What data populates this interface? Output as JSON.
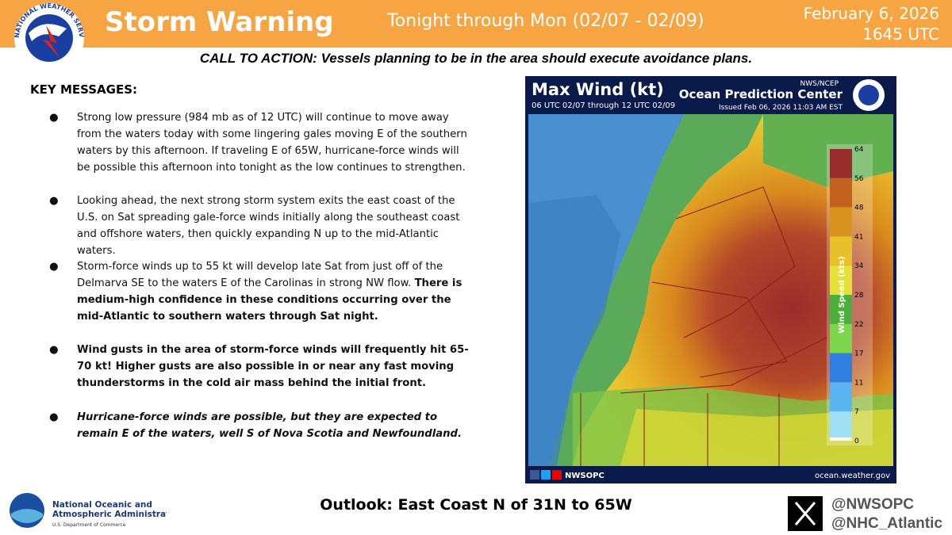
{
  "header": {
    "title": "Storm Warning",
    "period": "Tonight through Mon (02/07 - 02/09)",
    "date": "February 6, 2026",
    "time": "1645 UTC",
    "logo_text": "NATIONAL WEATHER SERVICE"
  },
  "call_to_action": "CALL TO ACTION: Vessels planning to be in the area should execute avoidance plans.",
  "key_messages": {
    "heading": "KEY MESSAGES:",
    "bullets": [
      [
        {
          "text": "Strong low pressure (984 mb as of 12 UTC) will continue to move away from the waters today with some lingering gales moving E of the southern waters by this afternoon. If traveling E of 65W, hurricane-force winds will be possible this afternoon into tonight as the low continues to strengthen.",
          "style": "normal"
        }
      ],
      [
        {
          "text": "Looking ahead, the next strong storm system exits the east coast of the U.S. on Sat spreading gale-force winds initially along the southeast coast and offshore waters, then quickly expanding N up to the mid-Atlantic waters.",
          "style": "normal"
        }
      ],
      [
        {
          "text": "Storm-force winds up to 55 kt will develop late Sat from just off of the Delmarva SE to the waters E of the Carolinas in strong NW flow.",
          "style": "normal"
        },
        {
          "text": "There is medium-high confidence in these conditions occurring over the mid-Atlantic to southern waters through Sat night.",
          "style": "bold"
        }
      ],
      [
        {
          "text": "Wind gusts in the area of storm-force winds will frequently hit 65-70 kt! Higher gusts are also possible in or near any fast moving thunderstorms in the cold air mass behind the initial front.",
          "style": "bold"
        }
      ],
      [
        {
          "text": "Hurricane-force winds are possible, but they are expected to remain E of the waters, well S of Nova Scotia and Newfoundland.",
          "style": "bold-italic"
        }
      ]
    ]
  },
  "map": {
    "title": "Max Wind (kt)",
    "valid": "06 UTC 02/07 through 12 UTC 02/09",
    "agency": "NWS/NCEP",
    "center": "Ocean Prediction Center",
    "issued": "Issued Feb 06, 2026 11:03 AM EST",
    "legend_title": "Wind Speed (kts)",
    "legend_ticks": [
      64,
      56,
      48,
      41,
      34,
      28,
      22,
      17,
      11,
      7,
      0
    ],
    "social": "NWSOPC",
    "website": "ocean.weather.gov"
  },
  "footer": {
    "noaa_name": "National Oceanic and Atmospheric Administration",
    "noaa_dept": "U.S. Department of Commerce",
    "outlook": "Outlook: East Coast N of 31N to 65W",
    "handles": [
      "@NWSOPC",
      "@NHC_Atlantic"
    ]
  }
}
